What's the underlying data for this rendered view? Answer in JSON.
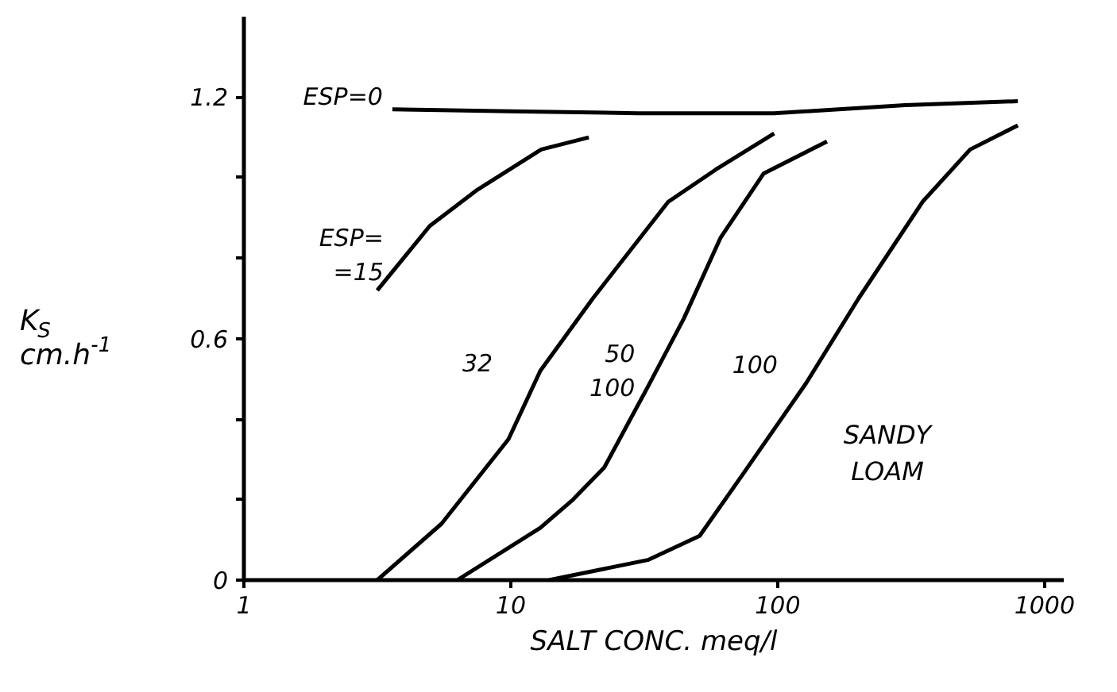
{
  "chart_data": {
    "type": "line",
    "xlabel": "SALT CONC. meq/l",
    "ylabel": "K$_{S}$ cm.h$^{-1}$",
    "log": "x",
    "xlim": [
      1,
      1180
    ],
    "xticks": [
      1,
      10,
      100,
      1000
    ],
    "ylim": [
      0,
      1.4
    ],
    "yticks": [
      0,
      {
        "value": 0.2,
        "label": null
      },
      {
        "value": 0.4,
        "label": null
      },
      0.6,
      {
        "value": 0.8,
        "label": null
      },
      {
        "value": 1.0,
        "label": null
      },
      1.2
    ],
    "grid": false,
    "marker": "none",
    "line_style": "solid",
    "series": [
      {
        "name": "ESP=0",
        "color": "#000000",
        "x": [
          3.6,
          10,
          30,
          97,
          300,
          794
        ],
        "values": [
          1.17,
          1.165,
          1.16,
          1.16,
          1.18,
          1.19
        ]
      },
      {
        "name": "ESP=\n=15",
        "color": "#000000",
        "x": [
          3.16,
          4.97,
          7.5,
          13.0,
          19.6
        ],
        "values": [
          0.72,
          0.88,
          0.97,
          1.07,
          1.1
        ]
      },
      {
        "name": "32",
        "color": "#000000",
        "x": [
          3.16,
          5.5,
          9.8,
          12.9,
          20.3,
          38.9,
          58.6,
          97
        ],
        "values": [
          0.0,
          0.14,
          0.35,
          0.52,
          0.7,
          0.94,
          1.02,
          1.11
        ]
      },
      {
        "name": "50\n100",
        "color": "#000000",
        "x": [
          6.3,
          12.9,
          17.1,
          22.4,
          32.6,
          44.5,
          61,
          88.5,
          153
        ],
        "values": [
          0.0,
          0.13,
          0.2,
          0.28,
          0.48,
          0.65,
          0.85,
          1.01,
          1.09
        ]
      },
      {
        "name": "100",
        "color": "#000000",
        "x": [
          13.9,
          32.6,
          51,
          73.5,
          128,
          201,
          349,
          526,
          794
        ],
        "values": [
          0.0,
          0.05,
          0.11,
          0.26,
          0.49,
          0.7,
          0.94,
          1.07,
          1.13
        ]
      }
    ],
    "annotations": [
      "SANDY\nLOAM"
    ]
  }
}
